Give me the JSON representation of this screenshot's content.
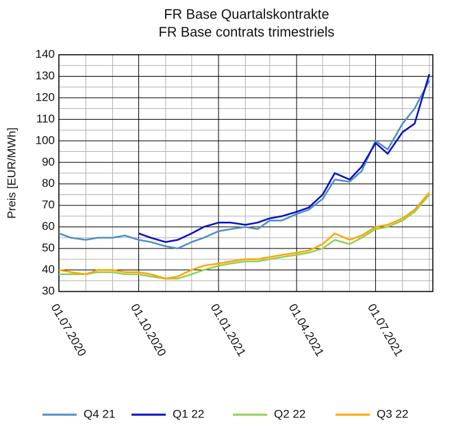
{
  "chart_data": {
    "type": "line",
    "title": "FR Base Quartalskontrakte",
    "subtitle": "FR Base contrats trimestriels",
    "y_label": "Preis [EUR/MWh]",
    "x": [
      "2020-07-01",
      "2020-07-15",
      "2020-08-01",
      "2020-08-15",
      "2020-09-01",
      "2020-09-15",
      "2020-10-01",
      "2020-10-15",
      "2020-11-01",
      "2020-11-15",
      "2020-12-01",
      "2020-12-15",
      "2021-01-01",
      "2021-01-15",
      "2021-02-01",
      "2021-02-15",
      "2021-03-01",
      "2021-03-15",
      "2021-04-01",
      "2021-04-15",
      "2021-05-01",
      "2021-05-15",
      "2021-06-01",
      "2021-06-15",
      "2021-07-01",
      "2021-07-15",
      "2021-08-01",
      "2021-08-15",
      "2021-09-01"
    ],
    "series": [
      {
        "name": "Q4 21",
        "color": "#4f8fc4",
        "values": [
          57,
          55,
          54,
          55,
          55,
          56,
          54,
          53,
          51,
          50,
          53,
          55,
          58,
          59,
          60,
          59,
          63,
          63,
          66,
          68,
          73,
          82,
          81,
          86,
          100,
          96,
          108,
          115,
          128
        ]
      },
      {
        "name": "Q1 22",
        "color": "#0a10c4",
        "values": [
          null,
          null,
          null,
          null,
          null,
          null,
          57,
          55,
          53,
          54,
          57,
          60,
          62,
          62,
          61,
          62,
          64,
          65,
          67,
          69,
          75,
          85,
          82,
          88,
          99,
          94,
          104,
          108,
          131
        ]
      },
      {
        "name": "Q2 22",
        "color": "#92d050",
        "values": [
          38,
          38,
          38,
          39,
          39,
          38,
          38,
          37,
          36,
          36,
          38,
          40,
          42,
          43,
          44,
          44,
          45,
          46,
          47,
          48,
          50,
          54,
          52,
          55,
          59,
          60,
          63,
          67,
          75
        ]
      },
      {
        "name": "Q3 22",
        "color": "#ffa500",
        "values": [
          40,
          39,
          38,
          40,
          40,
          39,
          39,
          38,
          36,
          37,
          40,
          42,
          43,
          44,
          45,
          45,
          46,
          47,
          48,
          49,
          52,
          57,
          54,
          56,
          60,
          61,
          64,
          68,
          76
        ]
      }
    ],
    "xlim": [
      "2020-07-01",
      "2021-09-05"
    ],
    "xticks": [
      {
        "value": "2020-07-01",
        "label": "01.07.2020"
      },
      {
        "value": "2020-10-01",
        "label": "01.10.2020"
      },
      {
        "value": "2021-01-01",
        "label": "01.01.2021"
      },
      {
        "value": "2021-04-01",
        "label": "01.04.2021"
      },
      {
        "value": "2021-07-01",
        "label": "01.07.2021"
      }
    ],
    "x_minor_ticks": [
      "2020-08-01",
      "2020-09-01",
      "2020-11-01",
      "2020-12-01",
      "2021-02-01",
      "2021-03-01",
      "2021-05-01",
      "2021-06-01",
      "2021-08-01",
      "2021-09-01"
    ],
    "ylim": [
      30,
      140
    ],
    "yticks": [
      30,
      40,
      50,
      60,
      70,
      80,
      90,
      100,
      110,
      120,
      130,
      140
    ],
    "y_minor_ticks": [
      35,
      45,
      55,
      65,
      75,
      85,
      95,
      105,
      115,
      125,
      135
    ],
    "grid": true,
    "legend": "bottom"
  }
}
